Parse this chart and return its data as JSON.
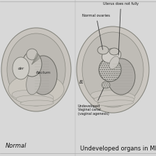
{
  "background_color": "#d8d8d8",
  "title_left": "Normal",
  "title_right": "Undeveloped organs in MRKH",
  "label_rectum": "Rectum",
  "label_bladder": "der",
  "label_b": "B.",
  "label_normal_ovaries": "Normal ovaries",
  "label_uterus": "Uterus does not fully",
  "label_undeveloped": "Undeveloped\nVaginal canal\n(vaginal agenesis)",
  "fig_width": 2.24,
  "fig_height": 2.24,
  "dpi": 100,
  "text_color": "#111111",
  "text_color_light": "#333333"
}
